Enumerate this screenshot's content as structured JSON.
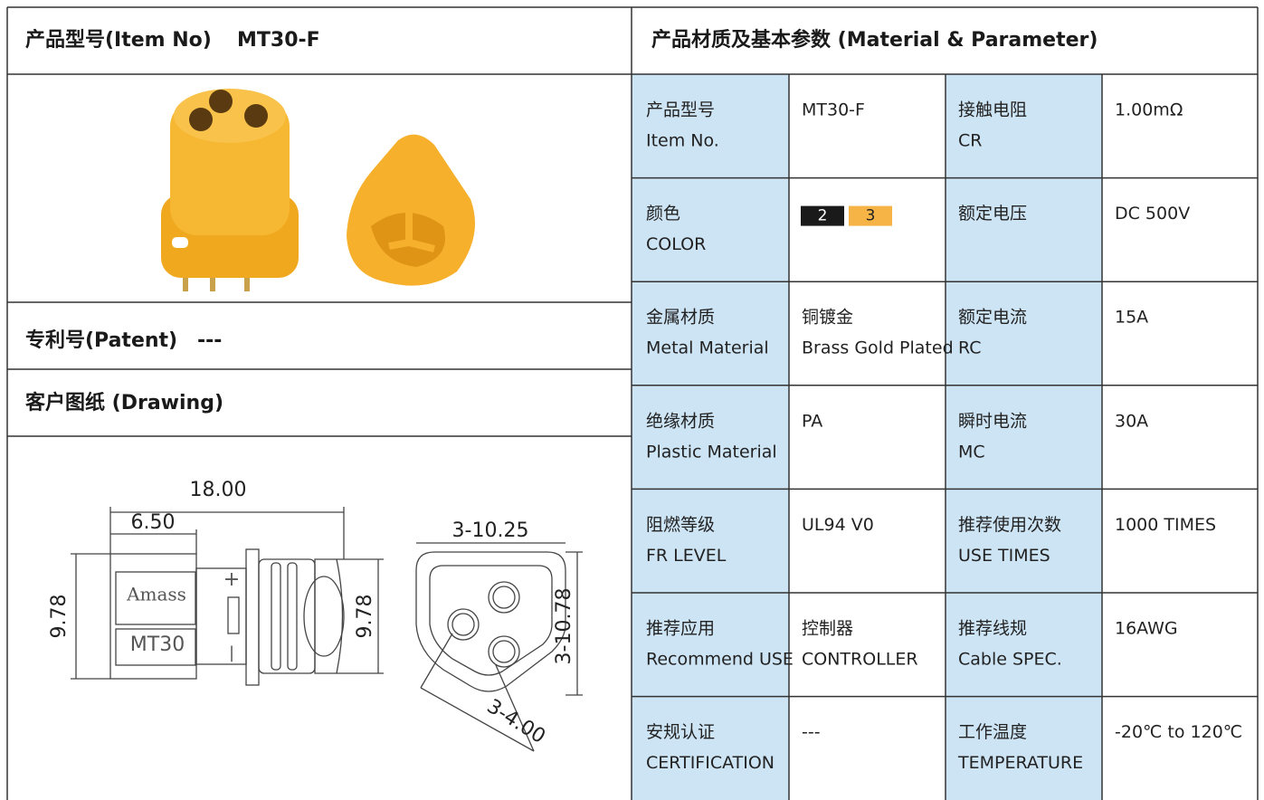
{
  "header": {
    "label": "产品型号(Item No)",
    "value": "MT30-F"
  },
  "patent": {
    "label": "专利号(Patent)",
    "value": "---"
  },
  "drawing": {
    "title": "客户图纸 (Drawing)",
    "dimensions": [
      "18.00",
      "6.50",
      "9.78",
      "9.78",
      "3-10.25",
      "3-10.78",
      "3-4.00"
    ],
    "marks": [
      "Amass",
      "MT30",
      "+",
      "|"
    ]
  },
  "parameters": {
    "title": "产品材质及基本参数 (Material & Parameter)",
    "rows": [
      [
        [
          "产品型号",
          "Item No."
        ],
        [
          "MT30-F"
        ],
        [
          "接触电阻",
          "CR"
        ],
        [
          "1.00mΩ"
        ]
      ],
      [
        [
          "颜色",
          "COLOR"
        ],
        {
          "swatches": [
            "2",
            "3"
          ]
        },
        [
          "额定电压"
        ],
        [
          "DC 500V"
        ]
      ],
      [
        [
          "金属材质",
          "Metal Material"
        ],
        [
          "铜镀金",
          "Brass Gold Plated"
        ],
        [
          "额定电流",
          "RC"
        ],
        [
          "15A"
        ]
      ],
      [
        [
          "绝缘材质",
          "Plastic Material"
        ],
        [
          "PA"
        ],
        [
          "瞬时电流",
          "MC"
        ],
        [
          "30A"
        ]
      ],
      [
        [
          "阻燃等级",
          "FR LEVEL"
        ],
        [
          "UL94 V0"
        ],
        [
          "推荐使用次数",
          "USE TIMES"
        ],
        [
          "1000 TIMES"
        ]
      ],
      [
        [
          "推荐应用",
          "Recommend USE"
        ],
        [
          "控制器",
          "CONTROLLER"
        ],
        [
          "推荐线规",
          "Cable SPEC."
        ],
        [
          "16AWG"
        ]
      ],
      [
        [
          "安规认证",
          "CERTIFICATION"
        ],
        [
          "---"
        ],
        [
          "工作温度",
          "TEMPERATURE"
        ],
        [
          "-20℃ to 120℃"
        ]
      ]
    ]
  }
}
